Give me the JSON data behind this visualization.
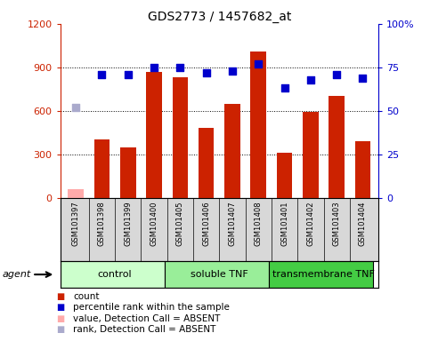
{
  "title": "GDS2773 / 1457682_at",
  "samples": [
    "GSM101397",
    "GSM101398",
    "GSM101399",
    "GSM101400",
    "GSM101405",
    "GSM101406",
    "GSM101407",
    "GSM101408",
    "GSM101401",
    "GSM101402",
    "GSM101403",
    "GSM101404"
  ],
  "counts": [
    60,
    400,
    350,
    870,
    830,
    480,
    650,
    1010,
    310,
    590,
    700,
    390
  ],
  "percentiles": [
    52,
    71,
    71,
    75,
    75,
    72,
    73,
    77,
    63,
    68,
    71,
    69
  ],
  "absent_count_idx": [
    0
  ],
  "absent_rank_idx": [
    0
  ],
  "bar_color_normal": "#cc2200",
  "bar_color_absent": "#ffaaaa",
  "dot_color_normal": "#0000cc",
  "dot_color_absent": "#aaaacc",
  "ylim_left": [
    0,
    1200
  ],
  "ylim_right": [
    0,
    100
  ],
  "yticks_left": [
    0,
    300,
    600,
    900,
    1200
  ],
  "ytick_labels_left": [
    "0",
    "300",
    "600",
    "900",
    "1200"
  ],
  "yticks_right": [
    0,
    25,
    50,
    75,
    100
  ],
  "ytick_labels_right": [
    "0",
    "25",
    "50",
    "75",
    "100%"
  ],
  "groups": [
    {
      "label": "control",
      "start": 0,
      "end": 4,
      "color": "#ccffcc"
    },
    {
      "label": "soluble TNF",
      "start": 4,
      "end": 8,
      "color": "#99ee99"
    },
    {
      "label": "transmembrane TNF",
      "start": 8,
      "end": 12,
      "color": "#44cc44"
    }
  ],
  "agent_label": "agent",
  "background_color": "#ffffff",
  "plot_bg_color": "#ffffff",
  "grid_color": "#000000",
  "left_axis_color": "#cc2200",
  "right_axis_color": "#0000cc",
  "legend_items": [
    {
      "label": "count",
      "color": "#cc2200"
    },
    {
      "label": "percentile rank within the sample",
      "color": "#0000cc"
    },
    {
      "label": "value, Detection Call = ABSENT",
      "color": "#ffaaaa"
    },
    {
      "label": "rank, Detection Call = ABSENT",
      "color": "#aaaacc"
    }
  ],
  "bar_width": 0.6,
  "dot_size": 40,
  "figsize": [
    4.83,
    3.84
  ],
  "dpi": 100
}
